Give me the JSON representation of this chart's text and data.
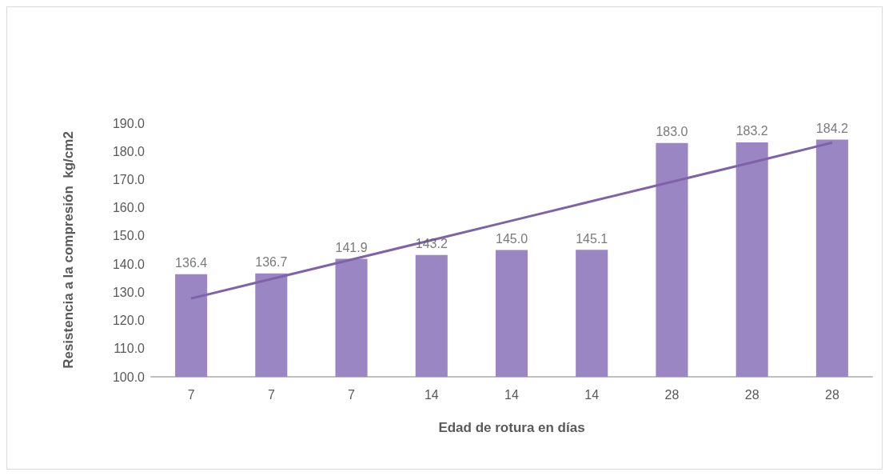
{
  "chart_data": {
    "type": "bar",
    "xlabel": "Edad de rotura en días",
    "ylabel": "Resistencia a la compresión  kg/cm2",
    "categories": [
      "7",
      "7",
      "7",
      "14",
      "14",
      "14",
      "28",
      "28",
      "28"
    ],
    "series": [
      {
        "color": "#9a86c2",
        "values": [
          136.4,
          136.7,
          141.9,
          143.2,
          145.0,
          145.1,
          183.0,
          183.2,
          184.2
        ],
        "value_labels": [
          "136.4",
          "136.7",
          "141.9",
          "143.2",
          "145.0",
          "145.1",
          "183.0",
          "183.2",
          "184.2"
        ]
      },
      {
        "type": "line",
        "color": "#7f63a8",
        "values": [
          127.8,
          134.7,
          141.6,
          148.5,
          155.4,
          162.3,
          169.2,
          176.1,
          183.1
        ]
      }
    ],
    "ylim": [
      100,
      190
    ],
    "yticks": [
      {
        "value": 100,
        "label": "100.0"
      },
      {
        "value": 110,
        "label": "110.0"
      },
      {
        "value": 120,
        "label": "120.0"
      },
      {
        "value": 130,
        "label": "130.0"
      },
      {
        "value": 140,
        "label": "140.0"
      },
      {
        "value": 150,
        "label": "150.0"
      },
      {
        "value": 160,
        "label": "160.0"
      },
      {
        "value": 170,
        "label": "170.0"
      },
      {
        "value": 180,
        "label": "180.0"
      },
      {
        "value": 190,
        "label": "190.0"
      }
    ],
    "grid": false,
    "marker": "none"
  }
}
